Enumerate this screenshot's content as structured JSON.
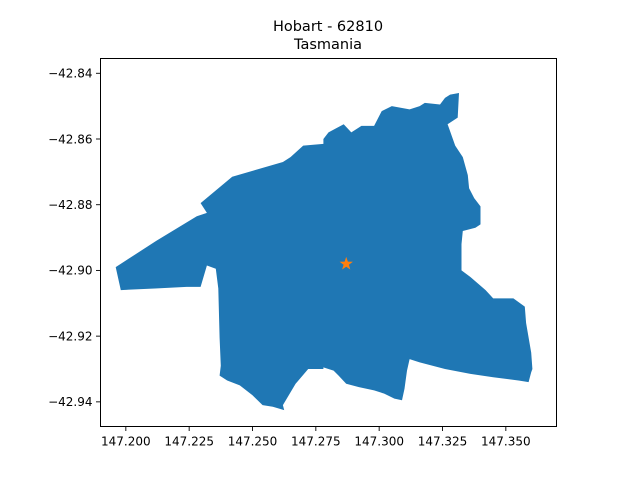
{
  "chart_data": {
    "type": "map",
    "title": "Hobart - 62810",
    "subtitle": "Tasmania",
    "xlabel": "",
    "ylabel": "",
    "xlim": [
      147.19,
      147.37
    ],
    "ylim": [
      -42.9475,
      -42.8355
    ],
    "xticks": [
      "147.200",
      "147.225",
      "147.250",
      "147.275",
      "147.300",
      "147.325",
      "147.350"
    ],
    "xtick_values": [
      147.2,
      147.225,
      147.25,
      147.275,
      147.3,
      147.325,
      147.35
    ],
    "yticks": [
      "−42.84",
      "−42.86",
      "−42.88",
      "−42.90",
      "−42.92",
      "−42.94"
    ],
    "ytick_values": [
      -42.84,
      -42.86,
      -42.88,
      -42.9,
      -42.92,
      -42.94
    ],
    "grid": false,
    "region_color": "#1f77b4",
    "marker_color": "#ff7f0e",
    "marker": {
      "symbol": "star",
      "lon": 147.287,
      "lat": -42.898
    },
    "region_outline": [
      [
        147.196,
        -42.899
      ],
      [
        147.212,
        -42.891
      ],
      [
        147.228,
        -42.8835
      ],
      [
        147.232,
        -42.8825
      ],
      [
        147.2295,
        -42.8795
      ],
      [
        147.242,
        -42.8715
      ],
      [
        147.262,
        -42.867
      ],
      [
        147.265,
        -42.8655
      ],
      [
        147.27,
        -42.862
      ],
      [
        147.278,
        -42.8615
      ],
      [
        147.278,
        -42.86
      ],
      [
        147.28,
        -42.858
      ],
      [
        147.286,
        -42.8555
      ],
      [
        147.289,
        -42.858
      ],
      [
        147.293,
        -42.856
      ],
      [
        147.298,
        -42.856
      ],
      [
        147.301,
        -42.8515
      ],
      [
        147.305,
        -42.85
      ],
      [
        147.312,
        -42.851
      ],
      [
        147.316,
        -42.85
      ],
      [
        147.318,
        -42.849
      ],
      [
        147.324,
        -42.8495
      ],
      [
        147.326,
        -42.8475
      ],
      [
        147.328,
        -42.8465
      ],
      [
        147.3315,
        -42.846
      ],
      [
        147.331,
        -42.8535
      ],
      [
        147.327,
        -42.8555
      ],
      [
        147.33,
        -42.862
      ],
      [
        147.333,
        -42.8655
      ],
      [
        147.335,
        -42.871
      ],
      [
        147.3355,
        -42.875
      ],
      [
        147.3375,
        -42.878
      ],
      [
        147.34,
        -42.8805
      ],
      [
        147.34,
        -42.886
      ],
      [
        147.338,
        -42.887
      ],
      [
        147.333,
        -42.888
      ],
      [
        147.3325,
        -42.892
      ],
      [
        147.3325,
        -42.896
      ],
      [
        147.3325,
        -42.9
      ],
      [
        147.336,
        -42.902
      ],
      [
        147.342,
        -42.906
      ],
      [
        147.345,
        -42.9085
      ],
      [
        147.353,
        -42.9085
      ],
      [
        147.3575,
        -42.911
      ],
      [
        147.358,
        -42.916
      ],
      [
        147.36,
        -42.925
      ],
      [
        147.3605,
        -42.93
      ],
      [
        147.36,
        -42.931
      ],
      [
        147.359,
        -42.934
      ],
      [
        147.355,
        -42.9335
      ],
      [
        147.345,
        -42.9325
      ],
      [
        147.336,
        -42.9315
      ],
      [
        147.326,
        -42.93
      ],
      [
        147.316,
        -42.928
      ],
      [
        147.314,
        -42.9275
      ],
      [
        147.312,
        -42.927
      ],
      [
        147.311,
        -42.9305
      ],
      [
        147.31,
        -42.936
      ],
      [
        147.309,
        -42.9395
      ],
      [
        147.306,
        -42.939
      ],
      [
        147.302,
        -42.9375
      ],
      [
        147.298,
        -42.9365
      ],
      [
        147.292,
        -42.9355
      ],
      [
        147.287,
        -42.9345
      ],
      [
        147.284,
        -42.932
      ],
      [
        147.282,
        -42.9305
      ],
      [
        147.278,
        -42.9295
      ],
      [
        147.278,
        -42.93
      ],
      [
        147.276,
        -42.93
      ],
      [
        147.272,
        -42.93
      ],
      [
        147.267,
        -42.9345
      ],
      [
        147.262,
        -42.941
      ],
      [
        147.2625,
        -42.9425
      ],
      [
        147.258,
        -42.9415
      ],
      [
        147.254,
        -42.941
      ],
      [
        147.25,
        -42.938
      ],
      [
        147.245,
        -42.935
      ],
      [
        147.24,
        -42.9335
      ],
      [
        147.237,
        -42.932
      ],
      [
        147.2375,
        -42.929
      ],
      [
        147.237,
        -42.9205
      ],
      [
        147.2365,
        -42.9055
      ],
      [
        147.2355,
        -42.8995
      ],
      [
        147.232,
        -42.8985
      ],
      [
        147.2295,
        -42.905
      ],
      [
        147.224,
        -42.905
      ],
      [
        147.2115,
        -42.9055
      ],
      [
        147.198,
        -42.906
      ]
    ]
  }
}
